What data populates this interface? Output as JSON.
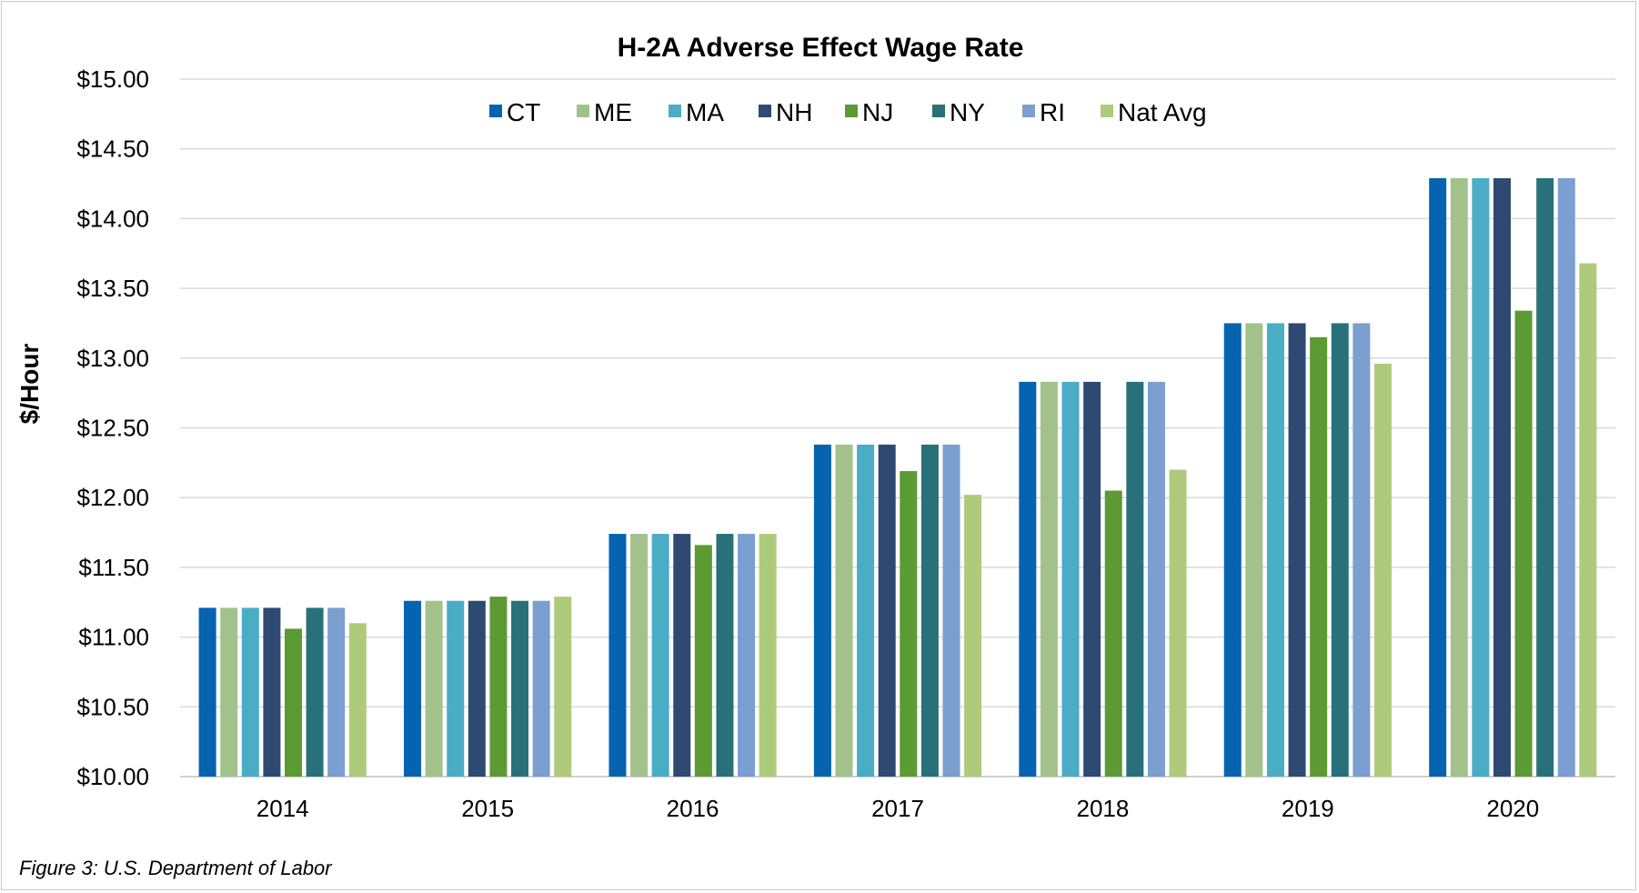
{
  "caption": "Figure 3: U.S. Department of Labor",
  "chart_data": {
    "type": "bar",
    "title": "H-2A Adverse Effect Wage Rate",
    "xlabel": "",
    "ylabel": "$/Hour",
    "ylim": [
      10,
      15
    ],
    "ytick_step": 0.5,
    "ytick_prefix": "$",
    "grid": true,
    "legend_position": "top",
    "categories": [
      "2014",
      "2015",
      "2016",
      "2017",
      "2018",
      "2019",
      "2020"
    ],
    "series": [
      {
        "name": "CT",
        "color": "#0563b0",
        "values": [
          11.21,
          11.26,
          11.74,
          12.38,
          12.83,
          13.25,
          14.29
        ]
      },
      {
        "name": "ME",
        "color": "#a3c28b",
        "values": [
          11.21,
          11.26,
          11.74,
          12.38,
          12.83,
          13.25,
          14.29
        ]
      },
      {
        "name": "MA",
        "color": "#4bacc6",
        "values": [
          11.21,
          11.26,
          11.74,
          12.38,
          12.83,
          13.25,
          14.29
        ]
      },
      {
        "name": "NH",
        "color": "#2e4a73",
        "values": [
          11.21,
          11.26,
          11.74,
          12.38,
          12.83,
          13.25,
          14.29
        ]
      },
      {
        "name": "NJ",
        "color": "#5c9a33",
        "values": [
          11.06,
          11.29,
          11.66,
          12.19,
          12.05,
          13.15,
          13.34
        ]
      },
      {
        "name": "NY",
        "color": "#28717b",
        "values": [
          11.21,
          11.26,
          11.74,
          12.38,
          12.83,
          13.25,
          14.29
        ]
      },
      {
        "name": "RI",
        "color": "#7a9fd0",
        "values": [
          11.21,
          11.26,
          11.74,
          12.38,
          12.83,
          13.25,
          14.29
        ]
      },
      {
        "name": "Nat Avg",
        "color": "#aecb7c",
        "values": [
          11.1,
          11.29,
          11.74,
          12.02,
          12.2,
          12.96,
          13.68
        ]
      }
    ]
  }
}
